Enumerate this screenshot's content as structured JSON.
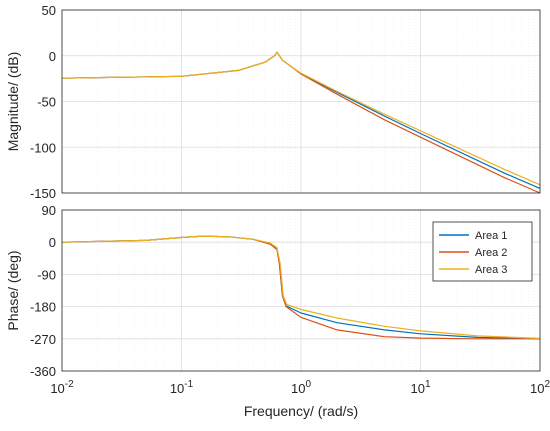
{
  "chart_data": [
    {
      "type": "line",
      "panel": "magnitude",
      "ylabel": "Magnitude/ (dB)",
      "xscale": "log",
      "xlim": [
        0.01,
        100
      ],
      "ylim": [
        -150,
        50
      ],
      "yticks": [
        50,
        0,
        -50,
        -100,
        -150
      ],
      "grid": true,
      "series": [
        {
          "name": "Area 1",
          "color": "#0072BD",
          "points": [
            [
              0.01,
              -24.5
            ],
            [
              0.1,
              -22.5
            ],
            [
              0.3,
              -16
            ],
            [
              0.5,
              -7
            ],
            [
              0.6,
              0
            ],
            [
              0.63,
              4
            ],
            [
              0.7,
              -5
            ],
            [
              0.85,
              -13
            ],
            [
              1,
              -19.5
            ],
            [
              2,
              -40
            ],
            [
              5,
              -66
            ],
            [
              10,
              -85
            ],
            [
              50,
              -128
            ],
            [
              100,
              -145
            ]
          ]
        },
        {
          "name": "Area 2",
          "color": "#D95319",
          "points": [
            [
              0.01,
              -24.5
            ],
            [
              0.1,
              -22.5
            ],
            [
              0.3,
              -16
            ],
            [
              0.5,
              -7
            ],
            [
              0.6,
              0
            ],
            [
              0.63,
              4
            ],
            [
              0.7,
              -5
            ],
            [
              0.85,
              -13
            ],
            [
              1,
              -20
            ],
            [
              2,
              -42
            ],
            [
              5,
              -70
            ],
            [
              10,
              -89
            ],
            [
              50,
              -133
            ],
            [
              100,
              -150
            ]
          ]
        },
        {
          "name": "Area 3",
          "color": "#EDB120",
          "points": [
            [
              0.01,
              -24.5
            ],
            [
              0.1,
              -22.5
            ],
            [
              0.3,
              -16
            ],
            [
              0.5,
              -7
            ],
            [
              0.6,
              0
            ],
            [
              0.63,
              4
            ],
            [
              0.7,
              -5
            ],
            [
              0.85,
              -13
            ],
            [
              1,
              -19
            ],
            [
              2,
              -39
            ],
            [
              5,
              -64
            ],
            [
              10,
              -82
            ],
            [
              50,
              -124
            ],
            [
              100,
              -141
            ]
          ]
        }
      ]
    },
    {
      "type": "line",
      "panel": "phase",
      "xlabel": "Frequency/  (rad/s)",
      "ylabel": "Phase/ (deg)",
      "xscale": "log",
      "xlim": [
        0.01,
        100
      ],
      "ylim": [
        -360,
        90
      ],
      "yticks": [
        90,
        0,
        -90,
        -180,
        -270,
        -360
      ],
      "xticks": [
        "10",
        "10",
        "10",
        "10",
        "10"
      ],
      "xtick_exponents": [
        "-2",
        "-1",
        "0",
        "1",
        "2"
      ],
      "xtick_values": [
        0.01,
        0.1,
        1,
        10,
        100
      ],
      "legend": "top-right",
      "grid": true,
      "series": [
        {
          "name": "Area 1",
          "color": "#0072BD",
          "points": [
            [
              0.01,
              0
            ],
            [
              0.05,
              5
            ],
            [
              0.1,
              13
            ],
            [
              0.15,
              17
            ],
            [
              0.25,
              15
            ],
            [
              0.4,
              8
            ],
            [
              0.55,
              -5
            ],
            [
              0.63,
              -20
            ],
            [
              0.66,
              -60
            ],
            [
              0.7,
              -150
            ],
            [
              0.75,
              -178
            ],
            [
              1,
              -198
            ],
            [
              2,
              -225
            ],
            [
              5,
              -245
            ],
            [
              10,
              -256
            ],
            [
              30,
              -266
            ],
            [
              100,
              -270
            ]
          ]
        },
        {
          "name": "Area 2",
          "color": "#D95319",
          "points": [
            [
              0.01,
              0
            ],
            [
              0.05,
              5
            ],
            [
              0.1,
              13
            ],
            [
              0.15,
              17
            ],
            [
              0.25,
              15
            ],
            [
              0.4,
              8
            ],
            [
              0.55,
              -5
            ],
            [
              0.63,
              -20
            ],
            [
              0.66,
              -60
            ],
            [
              0.7,
              -150
            ],
            [
              0.75,
              -180
            ],
            [
              1,
              -210
            ],
            [
              2,
              -245
            ],
            [
              5,
              -264
            ],
            [
              10,
              -268
            ],
            [
              30,
              -270
            ],
            [
              100,
              -270
            ]
          ]
        },
        {
          "name": "Area 3",
          "color": "#EDB120",
          "points": [
            [
              0.01,
              0
            ],
            [
              0.05,
              5
            ],
            [
              0.1,
              13
            ],
            [
              0.15,
              17
            ],
            [
              0.25,
              15
            ],
            [
              0.4,
              8
            ],
            [
              0.55,
              -2
            ],
            [
              0.63,
              -15
            ],
            [
              0.67,
              -60
            ],
            [
              0.71,
              -150
            ],
            [
              0.76,
              -174
            ],
            [
              1,
              -188
            ],
            [
              2,
              -212
            ],
            [
              5,
              -235
            ],
            [
              10,
              -248
            ],
            [
              30,
              -262
            ],
            [
              100,
              -269
            ]
          ]
        }
      ]
    }
  ]
}
